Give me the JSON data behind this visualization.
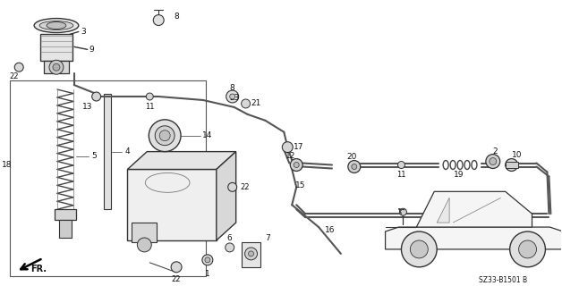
{
  "bg_color": "#ffffff",
  "diagram_code": "SZ33-B1501 B",
  "line_color": "#333333",
  "text_color": "#111111"
}
